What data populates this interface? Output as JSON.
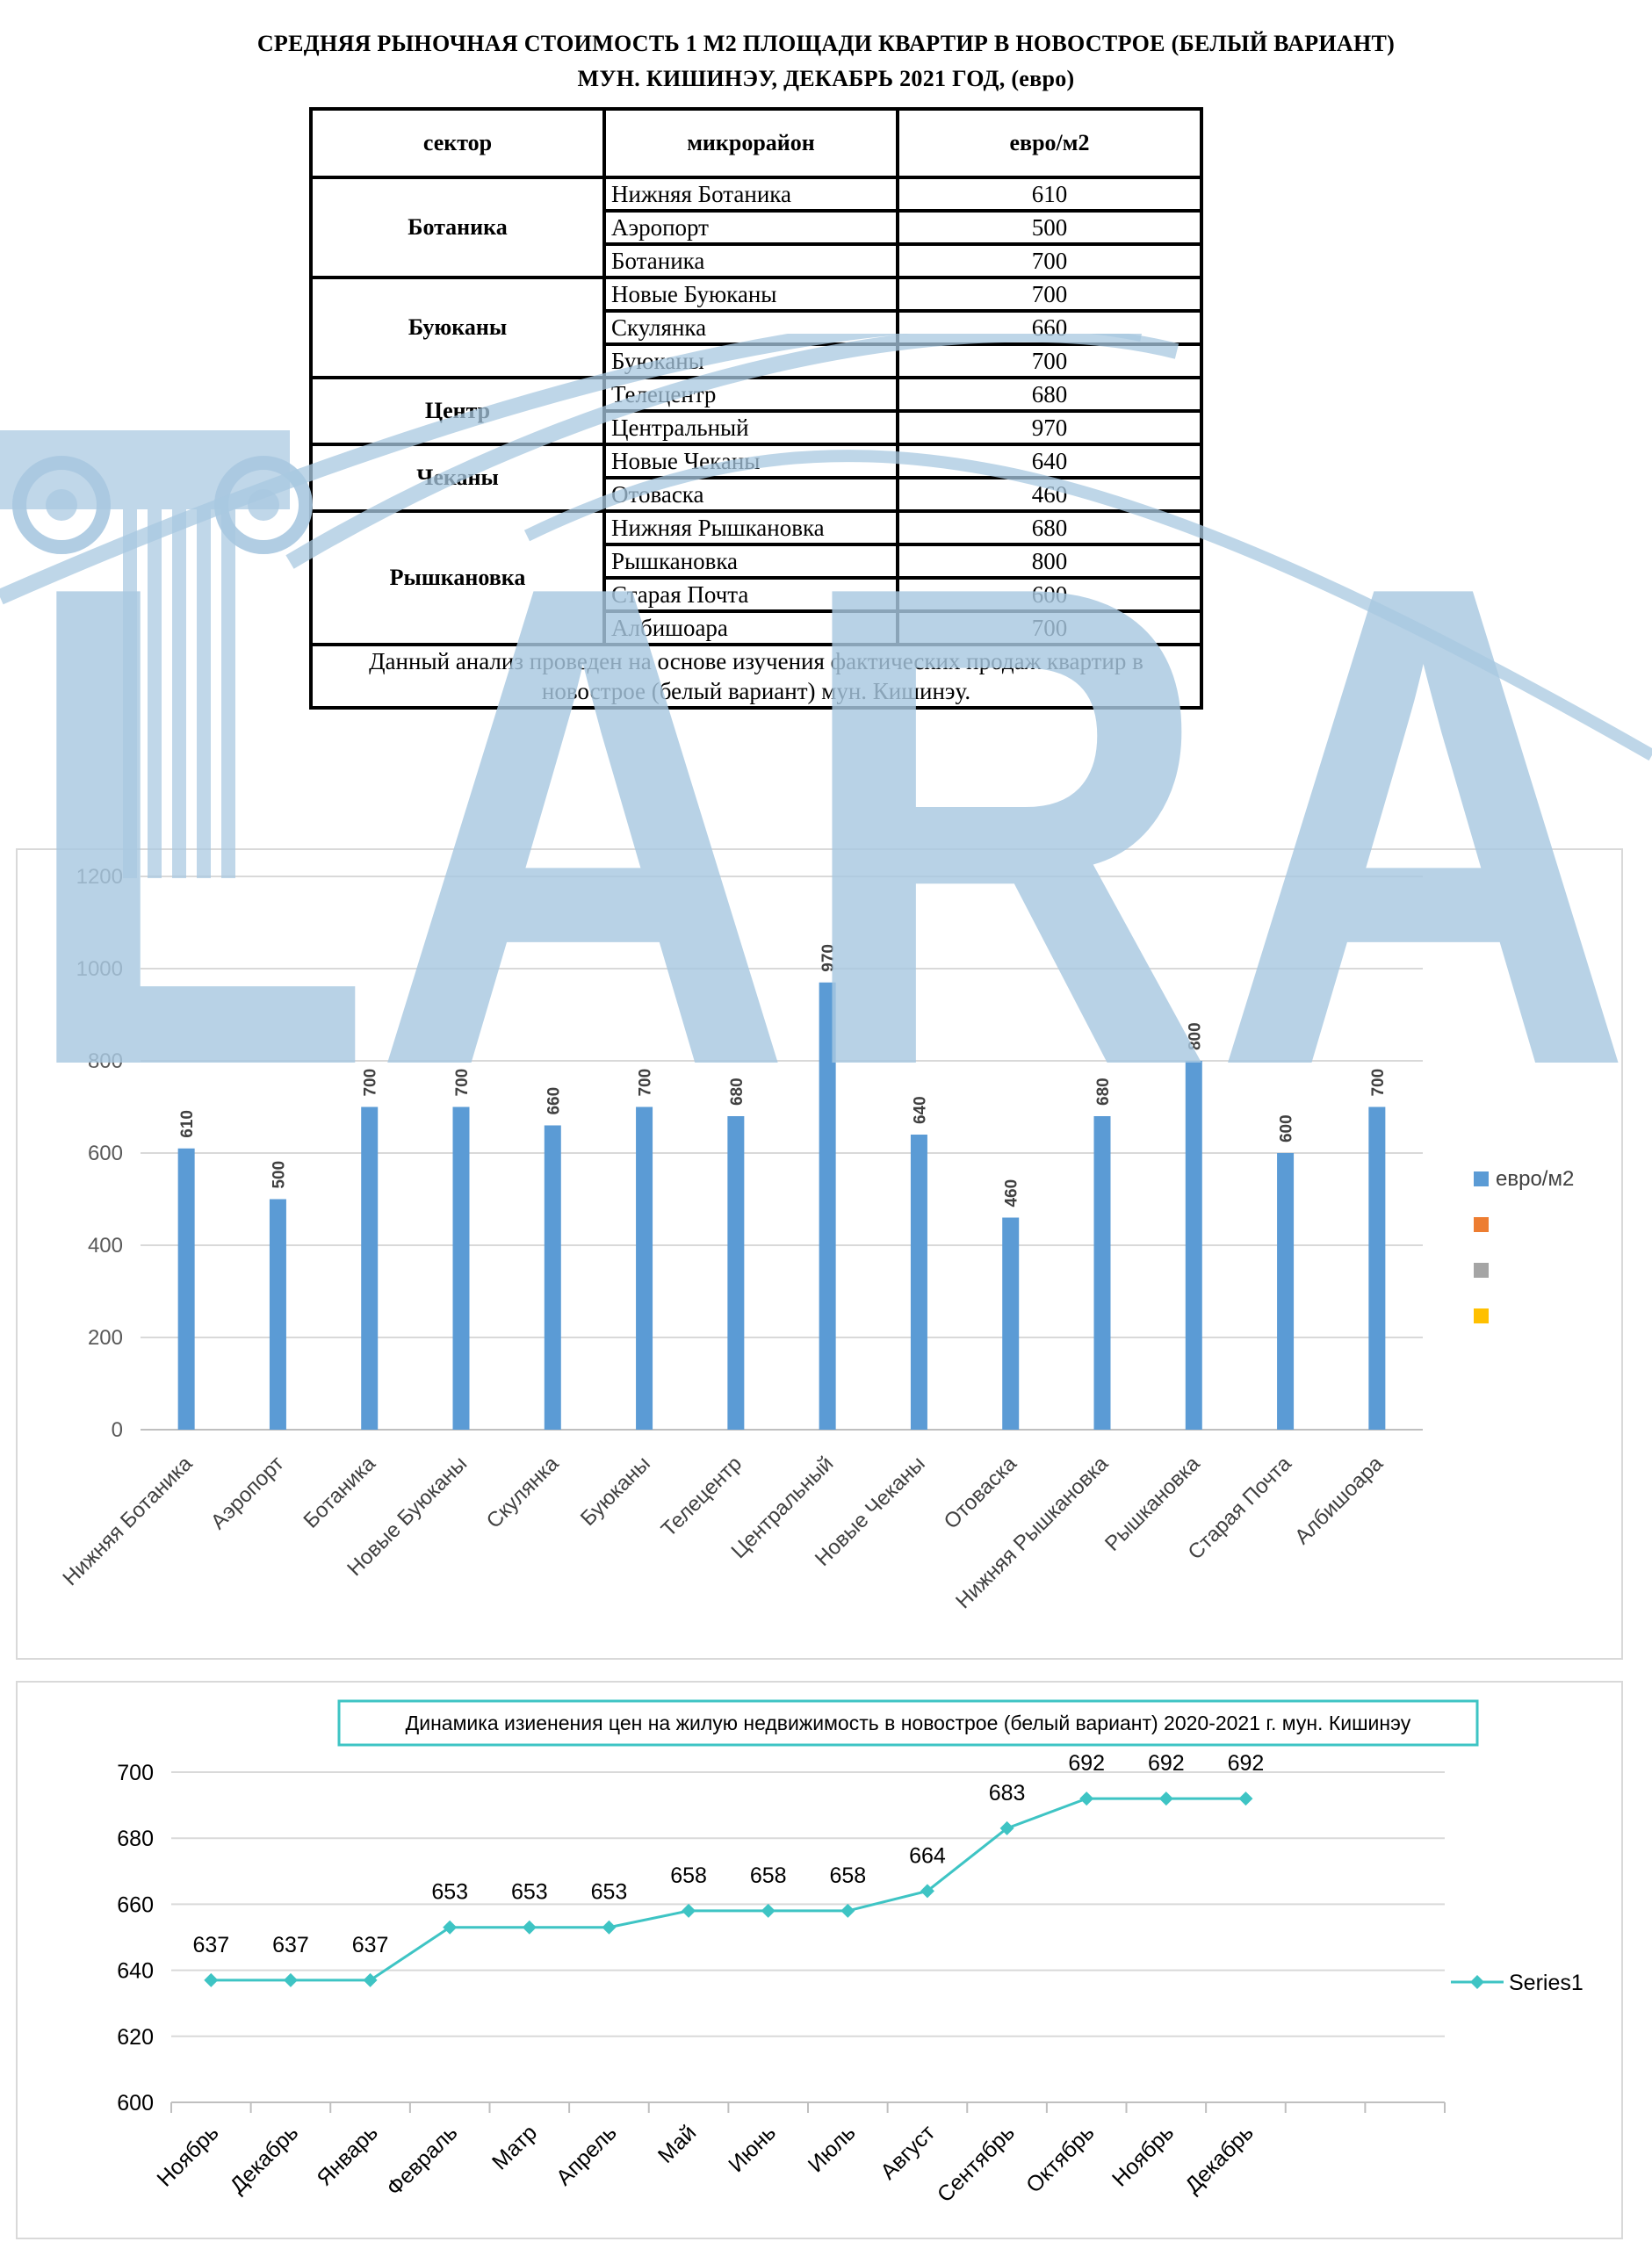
{
  "title_line1": "СРЕДНЯЯ  РЫНОЧНАЯ  СТОИМОСТЬ  1 М2  ПЛОЩАДИ  КВАРТИР В НОВОСТРОЕ  (БЕЛЫЙ ВАРИАНТ)",
  "title_line2": "МУН. КИШИНЭУ, ДЕКАБРЬ 2021 ГОД, (евро)",
  "table": {
    "headers": [
      "сектор",
      "микрорайон",
      "евро/м2"
    ],
    "groups": [
      {
        "sector": "Ботаника",
        "rows": [
          [
            "Нижняя Ботаника",
            "610"
          ],
          [
            "Аэропорт",
            "500"
          ],
          [
            "Ботаника",
            "700"
          ]
        ]
      },
      {
        "sector": "Буюканы",
        "rows": [
          [
            "Новые Буюканы",
            "700"
          ],
          [
            "Скулянка",
            "660"
          ],
          [
            "Буюканы",
            "700"
          ]
        ]
      },
      {
        "sector": "Центр",
        "rows": [
          [
            "Телецентр",
            "680"
          ],
          [
            "Центральный",
            "970"
          ]
        ]
      },
      {
        "sector": "Чеканы",
        "rows": [
          [
            "Новые Чеканы",
            "640"
          ],
          [
            "Отоваска",
            "460"
          ]
        ]
      },
      {
        "sector": "Рышкановка",
        "rows": [
          [
            "Нижняя Рышкановка",
            "680"
          ],
          [
            "Рышкановка",
            "800"
          ],
          [
            "Старая Почта",
            "600"
          ],
          [
            "Албишоара",
            "700"
          ]
        ]
      }
    ],
    "note": "Данный анализ проведен на основе изучения фактических продаж квартир в новострое (белый вариант)  мун. Кишинэу."
  },
  "watermark_text": "LARA",
  "colors": {
    "bar": "#5b9bd5",
    "line": "#3ec4c4",
    "legend2": "#ed7d31",
    "legend3": "#a5a5a5",
    "legend4": "#ffc000",
    "watermark": "#a8c8e0"
  },
  "chart_data": [
    {
      "type": "bar",
      "categories": [
        "Нижняя Ботаника",
        "Аэропорт",
        "Ботаника",
        "Новые Буюканы",
        "Скулянка",
        "Буюканы",
        "Телецентр",
        "Центральный",
        "Новые Чеканы",
        "Отоваска",
        "Нижняя Рышкановка",
        "Рышкановка",
        "Старая Почта",
        "Албишоара"
      ],
      "series": [
        {
          "name": "евро/м2",
          "values": [
            610,
            500,
            700,
            700,
            660,
            700,
            680,
            970,
            640,
            460,
            680,
            800,
            600,
            700
          ]
        }
      ],
      "legend_entries": [
        "евро/м2",
        "",
        "",
        ""
      ],
      "title": "",
      "ylim": [
        0,
        1200
      ],
      "yticks": [
        0,
        200,
        400,
        600,
        800,
        1000,
        1200
      ],
      "grid": true,
      "legend": "right"
    },
    {
      "type": "line",
      "title": "Динамика изиенения цен на жилую недвижимость в новострое (белый вариант) 2020-2021 г. мун. Кишинэу",
      "x": [
        "Ноябрь",
        "Декабрь",
        "Январь",
        "Февраль",
        "Матр",
        "Апрель",
        "Май",
        "Июнь",
        "Июль",
        "Август",
        "Сентябрь",
        "Октябрь",
        "Ноябрь",
        "Декабрь"
      ],
      "series": [
        {
          "name": "Series1",
          "values": [
            637,
            637,
            637,
            653,
            653,
            653,
            658,
            658,
            658,
            664,
            683,
            692,
            692,
            692
          ]
        }
      ],
      "ylim": [
        600,
        700
      ],
      "yticks": [
        600,
        620,
        640,
        660,
        680,
        700
      ],
      "grid": true,
      "legend": "right"
    }
  ]
}
